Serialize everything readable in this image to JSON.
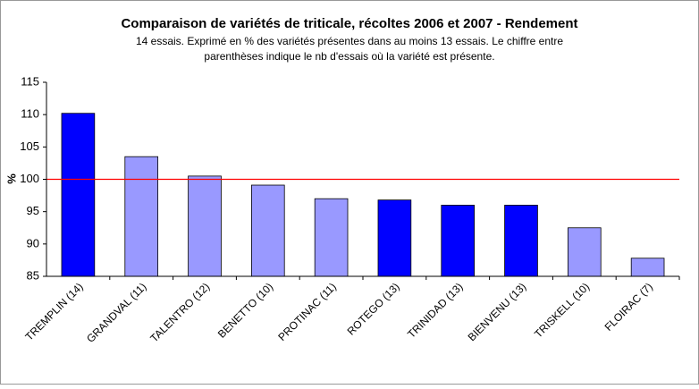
{
  "chart_data": {
    "type": "bar",
    "title": "Comparaison de variétés de triticale, récoltes 2006 et 2007 - Rendement",
    "subtitle": [
      "14 essais. Exprimé en % des variétés présentes dans au moins 13 essais. Le chiffre entre",
      "parenthèses indique le nb d'essais où la variété est présente."
    ],
    "ylabel": "%",
    "categories": [
      "TREMPLIN (14)",
      "GRANDVAL (11)",
      "TALENTRO (12)",
      "BENETTO (10)",
      "PROTINAC (11)",
      "ROTEGO (13)",
      "TRINIDAD (13)",
      "BIENVENU (13)",
      "TRISKELL (10)",
      "FLOIRAC (7)"
    ],
    "values": [
      110.2,
      103.5,
      100.5,
      99.1,
      97.0,
      96.8,
      96.0,
      96.0,
      92.5,
      87.8
    ],
    "colors": [
      "#0000ff",
      "#9999ff",
      "#9999ff",
      "#9999ff",
      "#9999ff",
      "#0000ff",
      "#0000ff",
      "#0000ff",
      "#9999ff",
      "#9999ff"
    ],
    "ylim": [
      85,
      115
    ],
    "yticks": [
      85,
      90,
      95,
      100,
      105,
      110,
      115
    ],
    "reference_line": 100,
    "reference_color": "#ff0000"
  }
}
